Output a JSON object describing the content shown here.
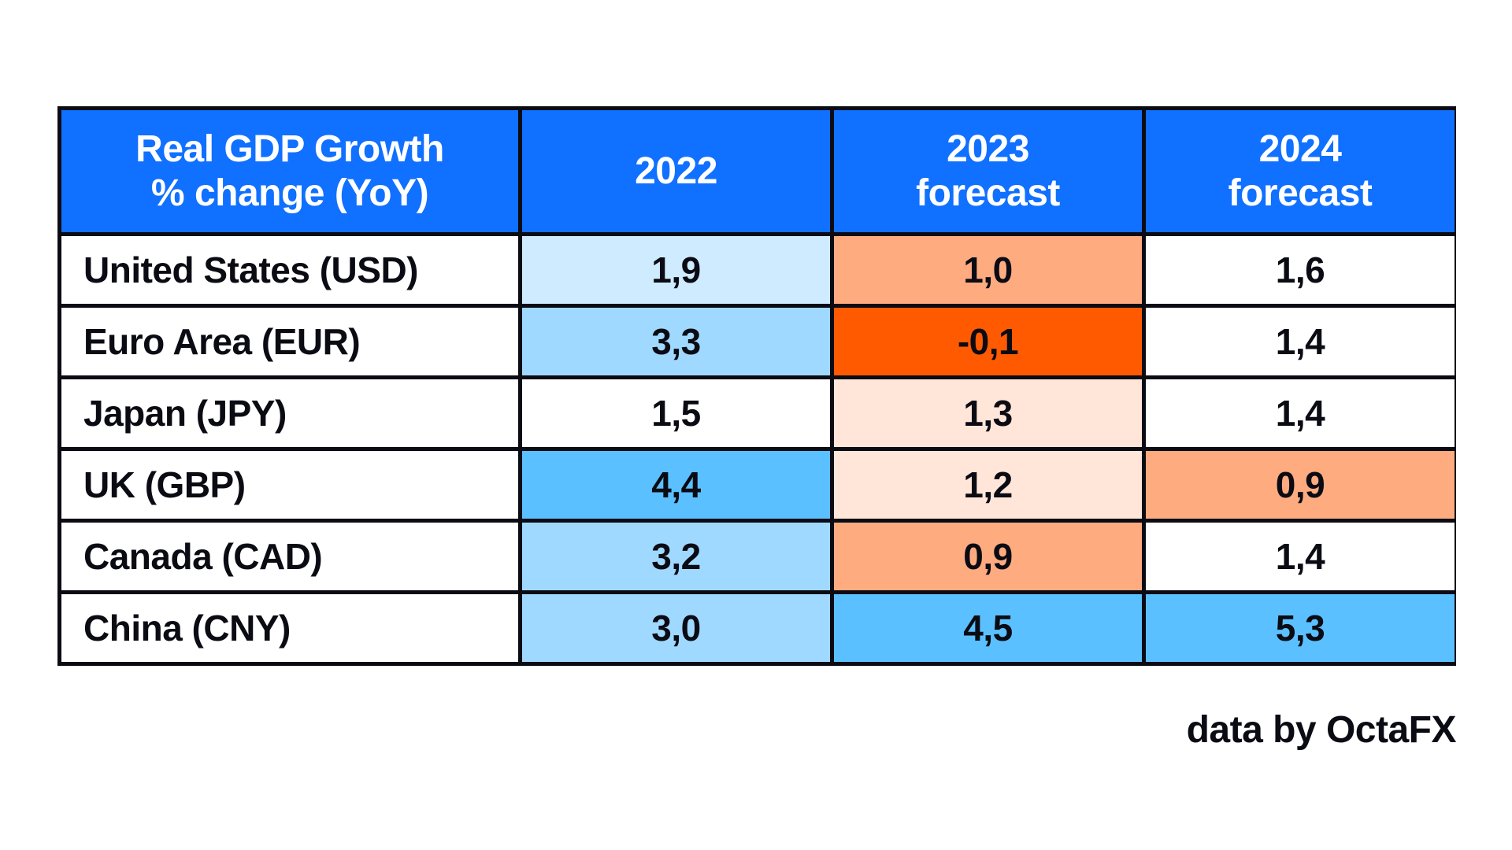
{
  "table": {
    "headers": [
      {
        "line1": "Real GDP Growth",
        "line2": "% change (YoY)"
      },
      {
        "line1": "2022",
        "line2": ""
      },
      {
        "line1": "2023",
        "line2": "forecast"
      },
      {
        "line1": "2024",
        "line2": "forecast"
      }
    ],
    "rows": [
      {
        "label": "United States (USD)",
        "values": [
          "1,9",
          "1,0",
          "1,6"
        ],
        "colors": [
          "#cfebff",
          "#ffab80",
          "#ffffff"
        ]
      },
      {
        "label": "Euro Area (EUR)",
        "values": [
          "3,3",
          "-0,1",
          "1,4"
        ],
        "colors": [
          "#a0d9ff",
          "#ff5a00",
          "#ffffff"
        ]
      },
      {
        "label": "Japan (JPY)",
        "values": [
          "1,5",
          "1,3",
          "1,4"
        ],
        "colors": [
          "#ffffff",
          "#ffe6d8",
          "#ffffff"
        ]
      },
      {
        "label": "UK (GBP)",
        "values": [
          "4,4",
          "1,2",
          "0,9"
        ],
        "colors": [
          "#5bc0ff",
          "#ffe6d8",
          "#ffab80"
        ]
      },
      {
        "label": "Canada (CAD)",
        "values": [
          "3,2",
          "0,9",
          "1,4"
        ],
        "colors": [
          "#a0d9ff",
          "#ffab80",
          "#ffffff"
        ]
      },
      {
        "label": "China (CNY)",
        "values": [
          "3,0",
          "4,5",
          "5,3"
        ],
        "colors": [
          "#a0d9ff",
          "#5bc0ff",
          "#5bc0ff"
        ]
      }
    ]
  },
  "colors": {
    "header": "#1070ff",
    "border": "#0b0b14"
  },
  "footer": "data by OctaFX"
}
